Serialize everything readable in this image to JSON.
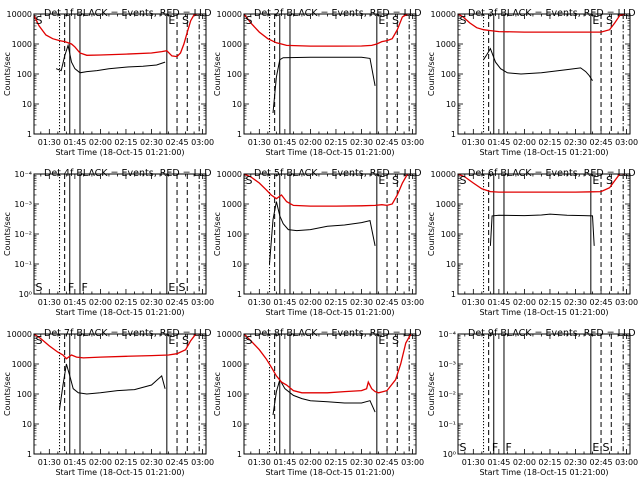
{
  "chart_data": {
    "type": "line",
    "common": {
      "x_tick_labels": [
        "01:30",
        "01:45",
        "02:00",
        "02:15",
        "02:30",
        "02:45",
        "03:00"
      ],
      "x_range": [
        "01:21",
        "03:02"
      ],
      "xlabel": "Start Time (18-Oct-15 01:21:00)",
      "ylabel": "Counts/sec",
      "y_scale": "log",
      "ylim": [
        1,
        10000
      ],
      "y_tick_labels": [
        "1",
        "10",
        "100",
        "1000",
        "10000"
      ],
      "colors": {
        "events": "#000000",
        "lld": "#e00000"
      },
      "markers": [
        {
          "time": "01:36",
          "style": "dotted",
          "label": ""
        },
        {
          "time": "01:39",
          "style": "dashed",
          "label": ""
        },
        {
          "time": "01:42",
          "style": "solid",
          "label": "F"
        },
        {
          "time": "01:48",
          "style": "solid",
          "label": "F"
        },
        {
          "time": "02:39",
          "style": "solid",
          "label": ""
        },
        {
          "time": "02:45",
          "style": "dashed",
          "label": "E"
        },
        {
          "time": "02:51",
          "style": "dashed",
          "label": "S"
        },
        {
          "time": "02:58",
          "style": "dashdot",
          "label": ""
        }
      ]
    },
    "panels": [
      {
        "title": "Det 1f BLACK = Events, RED = LLD",
        "empty": false,
        "flags": [],
        "series": [
          {
            "name": "Events",
            "x": [
              "01:34",
              "01:37",
              "01:39",
              "01:41",
              "01:43",
              "01:45",
              "01:48",
              "01:52",
              "01:58",
              "02:05",
              "02:15",
              "02:25",
              "02:33",
              "02:38"
            ],
            "y": [
              150,
              130,
              400,
              900,
              250,
              150,
              110,
              120,
              130,
              150,
              170,
              180,
              200,
              250
            ]
          },
          {
            "name": "LLD",
            "x": [
              "01:21",
              "01:24",
              "01:28",
              "01:32",
              "01:36",
              "01:39",
              "01:41",
              "01:43",
              "01:45",
              "01:48",
              "01:52",
              "02:00",
              "02:15",
              "02:30",
              "02:36",
              "02:39",
              "02:42",
              "02:45",
              "02:47",
              "02:49",
              "02:51",
              "02:53",
              "02:55",
              "02:57",
              "02:59"
            ],
            "y": [
              9000,
              4000,
              2000,
              1500,
              1300,
              1200,
              1100,
              1000,
              800,
              500,
              420,
              430,
              460,
              500,
              560,
              600,
              400,
              380,
              500,
              1000,
              2500,
              6000,
              9500,
              10000,
              10000
            ]
          }
        ]
      },
      {
        "title": "Det 2f BLACK = Events, RED = LLD",
        "empty": false,
        "flags": [],
        "series": [
          {
            "name": "Events",
            "x": [
              "01:38",
              "01:40",
              "01:42",
              "01:44",
              "02:00",
              "02:15",
              "02:30",
              "02:35",
              "02:38"
            ],
            "y": [
              5,
              80,
              300,
              350,
              360,
              360,
              360,
              330,
              40
            ]
          },
          {
            "name": "LLD",
            "x": [
              "01:21",
              "01:25",
              "01:30",
              "01:35",
              "01:40",
              "01:43",
              "01:46",
              "02:00",
              "02:15",
              "02:30",
              "02:36",
              "02:39",
              "02:42",
              "02:45",
              "02:48",
              "02:51",
              "02:54",
              "02:57",
              "02:59"
            ],
            "y": [
              10000,
              5000,
              2500,
              1500,
              1100,
              1000,
              900,
              850,
              850,
              860,
              900,
              1000,
              1200,
              1300,
              1500,
              3000,
              8000,
              10000,
              10000
            ]
          }
        ]
      },
      {
        "title": "Det 3f BLACK = Events, RED = LLD",
        "empty": false,
        "flags": [],
        "series": [
          {
            "name": "Events",
            "x": [
              "01:36",
              "01:38",
              "01:40",
              "01:43",
              "01:46",
              "01:50",
              "01:58",
              "02:10",
              "02:25",
              "02:33",
              "02:36",
              "02:38",
              "02:40"
            ],
            "y": [
              300,
              450,
              700,
              250,
              150,
              110,
              100,
              110,
              140,
              160,
              120,
              90,
              60
            ]
          },
          {
            "name": "LLD",
            "x": [
              "01:21",
              "01:24",
              "01:28",
              "01:32",
              "01:36",
              "01:40",
              "01:45",
              "02:00",
              "02:15",
              "02:30",
              "02:40",
              "02:45",
              "02:50",
              "02:53",
              "02:56",
              "02:59"
            ],
            "y": [
              10000,
              8000,
              5000,
              3500,
              3000,
              2800,
              2600,
              2500,
              2500,
              2500,
              2500,
              2500,
              3000,
              5000,
              9000,
              10000
            ]
          }
        ]
      },
      {
        "title": "Det 4f BLACK = Events, RED = LLD",
        "empty": true,
        "flags": [
          "S",
          "F",
          "F",
          "E",
          "S"
        ],
        "series": []
      },
      {
        "title": "Det 5f BLACK = Events, RED = LLD",
        "empty": false,
        "flags": [],
        "series": [
          {
            "name": "Events",
            "x": [
              "01:36",
              "01:38",
              "01:40",
              "01:42",
              "01:44",
              "01:47",
              "01:52",
              "02:00",
              "02:10",
              "02:20",
              "02:30",
              "02:35",
              "02:38"
            ],
            "y": [
              10,
              300,
              1200,
              400,
              220,
              140,
              130,
              140,
              180,
              200,
              240,
              280,
              40
            ]
          },
          {
            "name": "LLD",
            "x": [
              "01:21",
              "01:25",
              "01:30",
              "01:34",
              "01:37",
              "01:40",
              "01:43",
              "01:46",
              "01:50",
              "02:00",
              "02:15",
              "02:30",
              "02:38",
              "02:42",
              "02:45",
              "02:48",
              "02:51",
              "02:54",
              "02:57",
              "02:59"
            ],
            "y": [
              10000,
              8000,
              5000,
              3000,
              2000,
              1500,
              2000,
              1200,
              900,
              850,
              850,
              870,
              900,
              950,
              900,
              1000,
              2000,
              5000,
              10000,
              10000
            ]
          }
        ]
      },
      {
        "title": "Det 6f BLACK = Events, RED = LLD",
        "empty": false,
        "flags": [],
        "series": [
          {
            "name": "Events",
            "x": [
              "01:40",
              "01:41",
              "01:45",
              "02:00",
              "02:10",
              "02:15",
              "02:25",
              "02:35",
              "02:40",
              "02:41"
            ],
            "y": [
              40,
              400,
              420,
              410,
              430,
              460,
              420,
              410,
              400,
              40
            ]
          },
          {
            "name": "LLD",
            "x": [
              "01:21",
              "01:25",
              "01:30",
              "01:35",
              "01:40",
              "01:45",
              "02:00",
              "02:15",
              "02:30",
              "02:40",
              "02:45",
              "02:50",
              "02:53",
              "02:56",
              "02:59"
            ],
            "y": [
              10000,
              8000,
              5000,
              3200,
              2600,
              2500,
              2500,
              2500,
              2500,
              2550,
              2600,
              3500,
              6000,
              10000,
              10000
            ]
          }
        ]
      },
      {
        "title": "Det 7f BLACK = Events, RED = LLD",
        "empty": false,
        "flags": [],
        "series": [
          {
            "name": "Events",
            "x": [
              "01:36",
              "01:38",
              "01:40",
              "01:42",
              "01:44",
              "01:47",
              "01:52",
              "02:00",
              "02:10",
              "02:20",
              "02:30",
              "02:36",
              "02:38"
            ],
            "y": [
              30,
              200,
              1000,
              400,
              150,
              110,
              100,
              110,
              130,
              140,
              200,
              400,
              150
            ]
          },
          {
            "name": "LLD",
            "x": [
              "01:21",
              "01:25",
              "01:30",
              "01:35",
              "01:38",
              "01:40",
              "01:43",
              "01:46",
              "01:50",
              "02:00",
              "02:15",
              "02:30",
              "02:40",
              "02:45",
              "02:50",
              "02:53",
              "02:56",
              "02:59"
            ],
            "y": [
              10000,
              7000,
              4000,
              2500,
              2000,
              1500,
              2000,
              1700,
              1600,
              1700,
              1800,
              1900,
              2000,
              2200,
              3000,
              6000,
              10000,
              10000
            ]
          }
        ]
      },
      {
        "title": "Det 8f BLACK = Events, RED = LLD",
        "empty": false,
        "flags": [],
        "series": [
          {
            "name": "Events",
            "x": [
              "01:38",
              "01:40",
              "01:42",
              "01:45",
              "01:50",
              "01:55",
              "02:00",
              "02:10",
              "02:20",
              "02:30",
              "02:35",
              "02:38"
            ],
            "y": [
              20,
              120,
              300,
              150,
              90,
              70,
              60,
              55,
              50,
              50,
              60,
              25
            ]
          },
          {
            "name": "LLD",
            "x": [
              "01:21",
              "01:25",
              "01:30",
              "01:34",
              "01:37",
              "01:40",
              "01:43",
              "01:46",
              "01:50",
              "01:55",
              "02:00",
              "02:10",
              "02:20",
              "02:30",
              "02:33",
              "02:34",
              "02:36",
              "02:38",
              "02:40",
              "02:45",
              "02:50",
              "02:53",
              "02:56",
              "02:59"
            ],
            "y": [
              10000,
              6000,
              3000,
              1500,
              800,
              400,
              250,
              200,
              130,
              110,
              110,
              110,
              120,
              130,
              150,
              250,
              150,
              120,
              110,
              130,
              300,
              1000,
              5000,
              10000
            ]
          }
        ]
      },
      {
        "title": "Det 9f BLACK = Events, RED = LLD",
        "empty": true,
        "flags": [
          "S",
          "F",
          "F",
          "E",
          "S"
        ],
        "series": []
      }
    ]
  }
}
